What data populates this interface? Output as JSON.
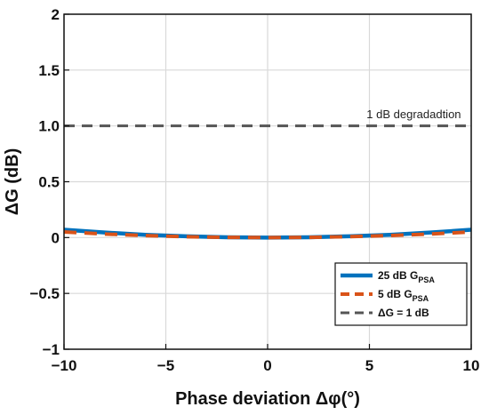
{
  "chart_data": {
    "type": "line",
    "xlabel": "Phase deviation Δφ(°)",
    "ylabel": "ΔG (dB)",
    "xlim": [
      -10,
      10
    ],
    "ylim": [
      -1,
      2
    ],
    "xticks": [
      -10,
      -5,
      0,
      5,
      10
    ],
    "yticks": [
      -1,
      -0.5,
      0,
      0.5,
      1,
      1.5,
      2
    ],
    "ytick_labels": [
      "−1",
      "−0.5",
      "0",
      "0.5",
      "1.0",
      "1.5",
      "2"
    ],
    "xtick_labels": [
      "−10",
      "−5",
      "0",
      "5",
      "10"
    ],
    "grid": true,
    "legend_position": "bottom-right",
    "series": [
      {
        "name": "25 dB G",
        "name_sub": "PSA",
        "color": "#0072bd",
        "style": "solid",
        "x": [
          -10,
          -8,
          -6,
          -4,
          -2,
          0,
          2,
          4,
          6,
          8,
          10
        ],
        "y": [
          0.07,
          0.045,
          0.025,
          0.012,
          0.003,
          0.0,
          0.003,
          0.012,
          0.025,
          0.045,
          0.07
        ]
      },
      {
        "name": "5 dB G",
        "name_sub": "PSA",
        "color": "#d95319",
        "style": "dashed",
        "x": [
          -10,
          -8,
          -6,
          -4,
          -2,
          0,
          2,
          4,
          6,
          8,
          10
        ],
        "y": [
          0.05,
          0.032,
          0.018,
          0.008,
          0.002,
          0.0,
          0.002,
          0.008,
          0.018,
          0.032,
          0.05
        ]
      },
      {
        "name": "ΔG = 1 dB",
        "color": "#555555",
        "style": "dashed",
        "x": [
          -10,
          10
        ],
        "y": [
          1,
          1
        ]
      }
    ],
    "annotations": [
      {
        "text": "1 dB degradadtion",
        "x": 9.5,
        "y": 1.07
      }
    ]
  }
}
